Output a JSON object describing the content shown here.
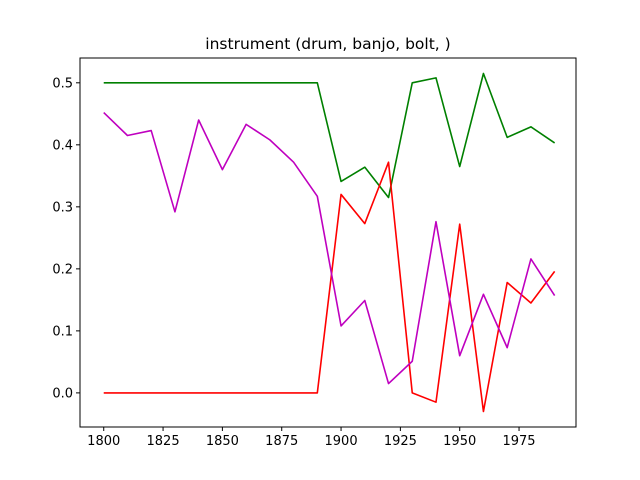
{
  "chart_data": {
    "type": "line",
    "title": "instrument (drum, banjo, bolt, )",
    "xlabel": "",
    "ylabel": "",
    "xlim": [
      1790,
      1999
    ],
    "ylim": [
      -0.055,
      0.54
    ],
    "x_ticks": [
      "1800",
      "1825",
      "1850",
      "1875",
      "1900",
      "1925",
      "1950",
      "1975"
    ],
    "y_ticks": [
      "0.0",
      "0.1",
      "0.2",
      "0.3",
      "0.4",
      "0.5"
    ],
    "grid": false,
    "x": [
      1800,
      1810,
      1820,
      1830,
      1840,
      1850,
      1860,
      1870,
      1880,
      1890,
      1900,
      1910,
      1920,
      1930,
      1940,
      1950,
      1960,
      1970,
      1980,
      1990
    ],
    "series": [
      {
        "color": "#008000",
        "values": [
          0.5,
          0.5,
          0.5,
          0.5,
          0.5,
          0.5,
          0.5,
          0.5,
          0.5,
          0.5,
          0.341,
          0.364,
          0.315,
          0.5,
          0.508,
          0.365,
          0.515,
          0.412,
          0.429,
          0.403
        ]
      },
      {
        "color": "#ff0000",
        "values": [
          0.0,
          0.0,
          0.0,
          0.0,
          0.0,
          0.0,
          0.0,
          0.0,
          0.0,
          0.0,
          0.32,
          0.273,
          0.372,
          0.0,
          -0.015,
          0.272,
          -0.03,
          0.178,
          0.145,
          0.196
        ]
      },
      {
        "color": "#bf00bf",
        "values": [
          0.452,
          0.415,
          0.423,
          0.292,
          0.44,
          0.36,
          0.433,
          0.408,
          0.372,
          0.317,
          0.108,
          0.149,
          0.015,
          0.051,
          0.276,
          0.06,
          0.159,
          0.073,
          0.216,
          0.157
        ]
      }
    ]
  }
}
